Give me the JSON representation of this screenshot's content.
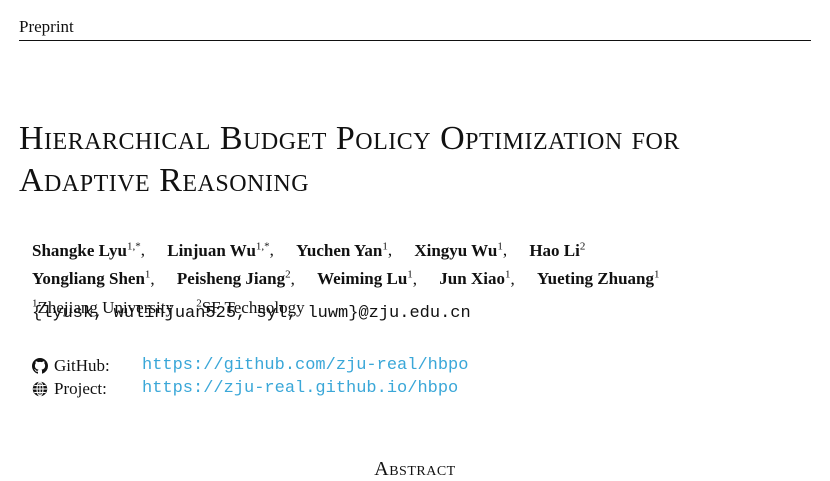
{
  "header": {
    "label": "Preprint"
  },
  "title": {
    "line1": "Hierarchical Budget Policy Optimization for",
    "line2": "Adaptive Reasoning"
  },
  "authors": {
    "row1": [
      {
        "name": "Shangke Lyu",
        "sup": "1,*"
      },
      {
        "name": "Linjuan Wu",
        "sup": "1,*"
      },
      {
        "name": "Yuchen Yan",
        "sup": "1"
      },
      {
        "name": "Xingyu Wu",
        "sup": "1"
      },
      {
        "name": "Hao Li",
        "sup": "2"
      }
    ],
    "row2": [
      {
        "name": "Yongliang Shen",
        "sup": "1"
      },
      {
        "name": "Peisheng Jiang",
        "sup": "2"
      },
      {
        "name": "Weiming Lu",
        "sup": "1"
      },
      {
        "name": "Jun Xiao",
        "sup": "1"
      },
      {
        "name": "Yueting Zhuang",
        "sup": "1"
      }
    ]
  },
  "affiliations": [
    {
      "sup": "1",
      "name": "Zhejiang University"
    },
    {
      "sup": "2",
      "name": "SF Technology"
    }
  ],
  "emails": "{lyusk, wulinjuan525, syl, luwm}@zju.edu.cn",
  "links": {
    "github": {
      "label": "GitHub:",
      "url": "https://github.com/zju-real/hbpo",
      "icon": "github-icon"
    },
    "project": {
      "label": "Project:",
      "url": "https://zju-real.github.io/hbpo",
      "icon": "globe-icon"
    }
  },
  "abstract_heading": "Abstract",
  "colors": {
    "link": "#3aa7d8",
    "text": "#111111"
  }
}
